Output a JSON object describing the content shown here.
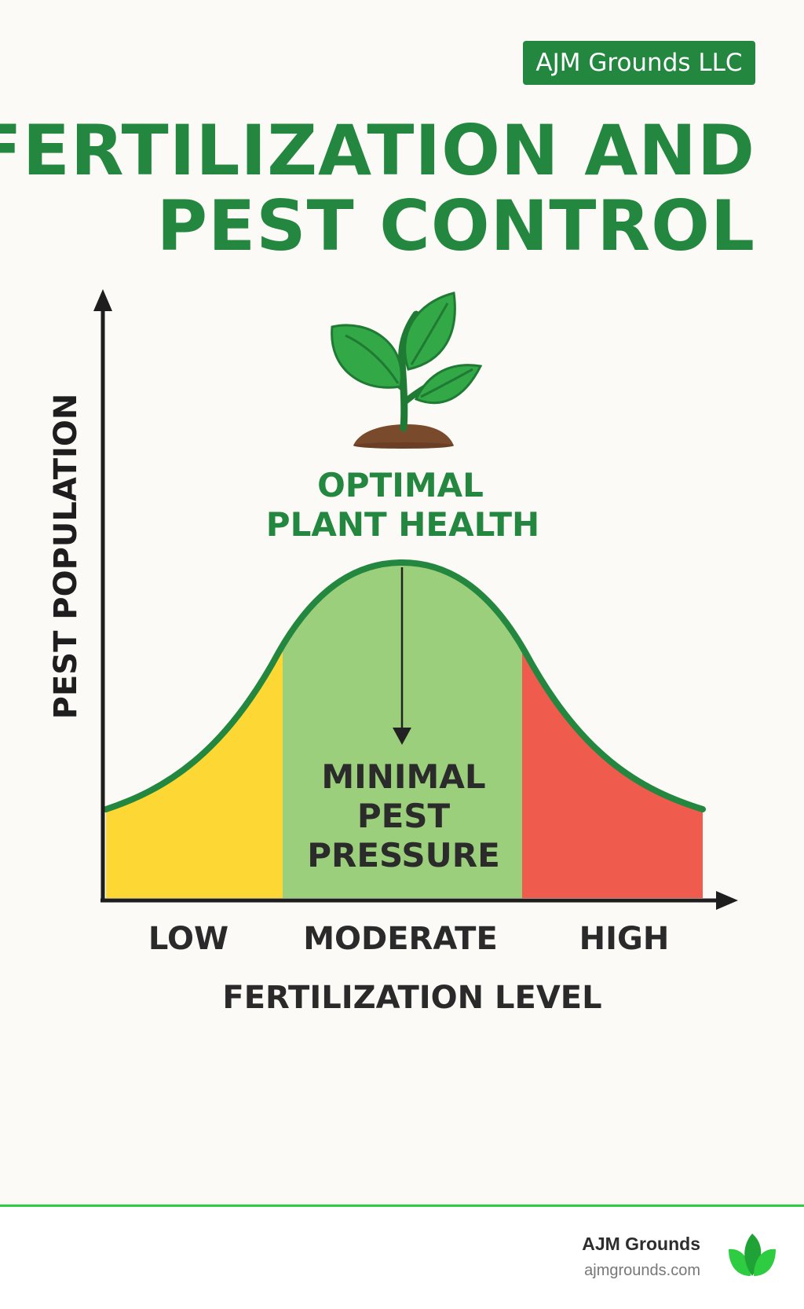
{
  "brand": {
    "badge": "AJM Grounds LLC"
  },
  "title": {
    "line1": "FERTILIZATION AND",
    "line2": "PEST CONTROL"
  },
  "diagram": {
    "y_axis_label": "PEST POPULATION",
    "x_axis_label": "FERTILIZATION LEVEL",
    "x_categories": [
      "LOW",
      "MODERATE",
      "HIGH"
    ],
    "peak_label": {
      "line1": "OPTIMAL",
      "line2": "PLANT HEALTH"
    },
    "center_label": {
      "line1": "MINIMAL",
      "line2": "PEST",
      "line3": "PRESSURE"
    },
    "zone_colors": {
      "low": "#fdd835",
      "moderate": "#9ccf7b",
      "high": "#ef5b4c"
    },
    "curve_color": "#23873f",
    "icon": "seedling-icon"
  },
  "footer": {
    "name": "AJM Grounds",
    "url": "ajmgrounds.com",
    "logo_icon": "leaf-logo-icon",
    "line_color": "#2ecc40"
  }
}
